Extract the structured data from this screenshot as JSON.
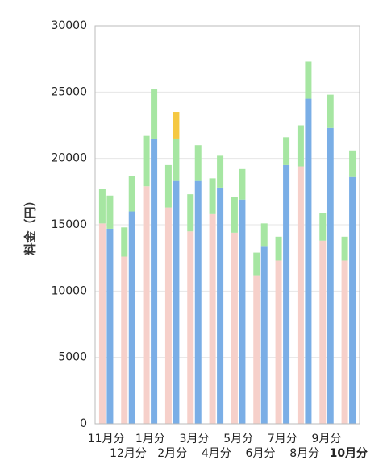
{
  "chart_data": {
    "type": "bar",
    "stacked": true,
    "ylabel": "料金（円）",
    "ylim": [
      0,
      30000
    ],
    "yticks": [
      "0",
      "5000",
      "10000",
      "15000",
      "20000",
      "25000",
      "30000"
    ],
    "grid": true,
    "categories": [
      "11月分",
      "12月分",
      "1月分",
      "2月分",
      "3月分",
      "4月分",
      "5月分",
      "6月分",
      "7月分",
      "8月分",
      "9月分",
      "10月分"
    ],
    "highlight_category": "10月分",
    "colors": {
      "prev_base": "#f6d0ca",
      "curr_base": "#7aaee6",
      "top": "#a6e6a2",
      "top_highlight": "#f5c842"
    },
    "bars": [
      {
        "category": "11月分",
        "prev": {
          "base": 15100,
          "total": 17700
        },
        "curr": {
          "base": 14700,
          "total": 17200
        }
      },
      {
        "category": "12月分",
        "prev": {
          "base": 12600,
          "total": 14800
        },
        "curr": {
          "base": 16000,
          "total": 18700
        }
      },
      {
        "category": "1月分",
        "prev": {
          "base": 17900,
          "total": 21700
        },
        "curr": {
          "base": 21500,
          "total": 25200
        }
      },
      {
        "category": "2月分",
        "prev": {
          "base": 16300,
          "total": 19500
        },
        "curr": {
          "base": 18300,
          "total": 21500,
          "extra": 23500
        }
      },
      {
        "category": "3月分",
        "prev": {
          "base": 14500,
          "total": 17300
        },
        "curr": {
          "base": 18300,
          "total": 21000
        }
      },
      {
        "category": "4月分",
        "prev": {
          "base": 15800,
          "total": 18500
        },
        "curr": {
          "base": 17800,
          "total": 20200
        }
      },
      {
        "category": "5月分",
        "prev": {
          "base": 14400,
          "total": 17100
        },
        "curr": {
          "base": 16900,
          "total": 19200
        }
      },
      {
        "category": "6月分",
        "prev": {
          "base": 11200,
          "total": 12900
        },
        "curr": {
          "base": 13400,
          "total": 15100
        }
      },
      {
        "category": "7月分",
        "prev": {
          "base": 12300,
          "total": 14100
        },
        "curr": {
          "base": 19500,
          "total": 21600
        }
      },
      {
        "category": "8月分",
        "prev": {
          "base": 19400,
          "total": 22500
        },
        "curr": {
          "base": 24500,
          "total": 27300
        }
      },
      {
        "category": "9月分",
        "prev": {
          "base": 13800,
          "total": 15900
        },
        "curr": {
          "base": 22300,
          "total": 24800
        }
      },
      {
        "category": "10月分",
        "prev": {
          "base": 12300,
          "total": 14100
        },
        "curr": {
          "base": 18600,
          "total": 20600
        }
      }
    ]
  }
}
